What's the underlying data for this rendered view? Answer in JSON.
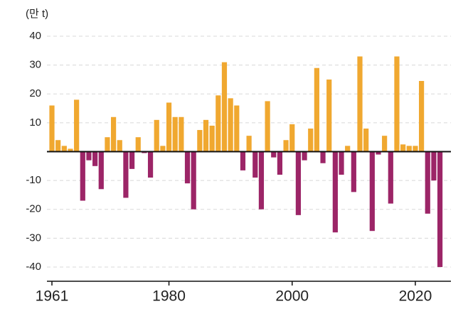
{
  "chart_data": {
    "type": "bar",
    "unit_label": "(만 t)",
    "x": [
      1961,
      1962,
      1963,
      1964,
      1965,
      1966,
      1967,
      1968,
      1969,
      1970,
      1971,
      1972,
      1973,
      1974,
      1975,
      1976,
      1977,
      1978,
      1979,
      1980,
      1981,
      1982,
      1983,
      1984,
      1985,
      1986,
      1987,
      1988,
      1989,
      1990,
      1991,
      1992,
      1993,
      1994,
      1995,
      1996,
      1997,
      1998,
      1999,
      2000,
      2001,
      2002,
      2003,
      2004,
      2005,
      2006,
      2007,
      2008,
      2009,
      2010,
      2011,
      2012,
      2013,
      2014,
      2015,
      2016,
      2017,
      2018,
      2019,
      2020,
      2021,
      2022,
      2023,
      2024
    ],
    "values": [
      16,
      4,
      2,
      1,
      18,
      -17,
      -3,
      -5,
      -13,
      5,
      12,
      4,
      -16,
      -6,
      5,
      -0.5,
      -9,
      11,
      2,
      17,
      12,
      12,
      -11,
      -20,
      7.5,
      11,
      9,
      19.5,
      31,
      18.5,
      16,
      -6.5,
      5.5,
      -9,
      -20,
      17.5,
      -2,
      -8,
      4,
      9.5,
      -22,
      -3,
      8,
      29,
      -4,
      25,
      -28,
      -8,
      2,
      -14,
      33,
      8,
      -27.5,
      -1,
      5.5,
      -18,
      33,
      2.5,
      2,
      2,
      24.5,
      -21.5,
      -10,
      -40
    ],
    "colors": {
      "positive": "#f0a830",
      "negative": "#9c2567"
    },
    "xlim": [
      1960,
      2025
    ],
    "xticks": [
      1961,
      1980,
      2000,
      2020
    ],
    "ylim": [
      -44,
      44
    ],
    "yticks": [
      40,
      30,
      20,
      10,
      -10,
      -20,
      -30,
      -40
    ],
    "grid": true
  }
}
